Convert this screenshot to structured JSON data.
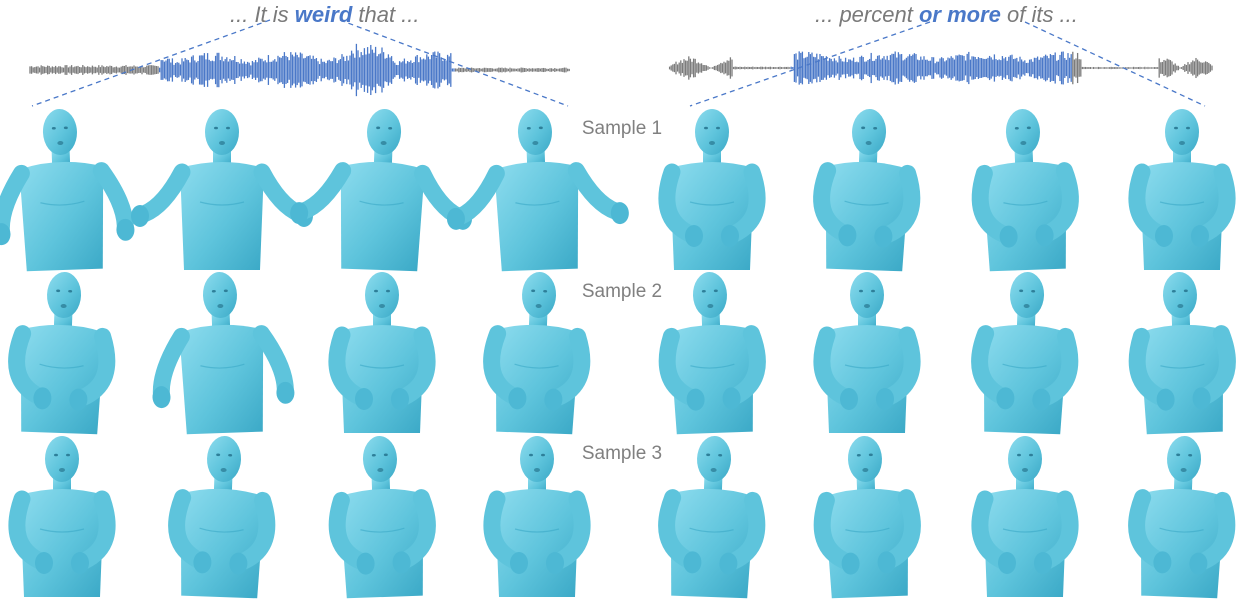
{
  "captions": {
    "left": {
      "prefix": "... It is ",
      "highlight": "weird",
      "suffix": " that ..."
    },
    "right": {
      "prefix": "... percent ",
      "highlight": "or more",
      "suffix": " of its ..."
    }
  },
  "rows": [
    {
      "label": "Sample 1"
    },
    {
      "label": "Sample 2"
    },
    {
      "label": "Sample 3"
    }
  ],
  "colors": {
    "waveform_highlight": "#4a78c8",
    "waveform_base": "#7c7c7c",
    "body": "#5ec4dc",
    "body_shade": "#3aa8c6",
    "caption_text": "#7a7a7a",
    "label_text": "#808080"
  }
}
